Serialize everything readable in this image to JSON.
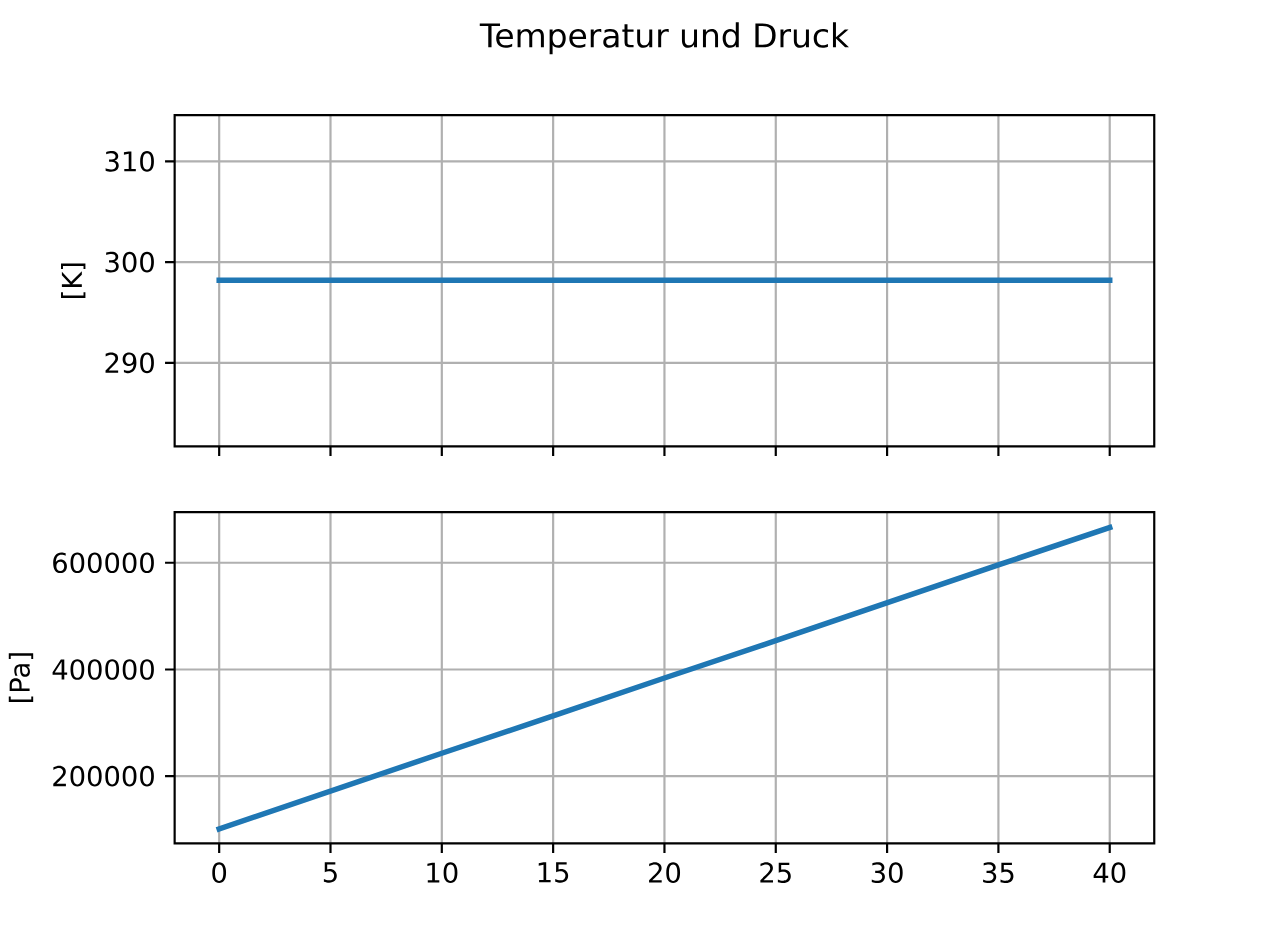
{
  "chart_data": [
    {
      "type": "line",
      "title": "Temperatur und Druck",
      "ylabel": "[K]",
      "x": [
        0,
        5,
        10,
        15,
        20,
        25,
        30,
        35,
        40
      ],
      "series": [
        {
          "color": "#1f77b4",
          "values": [
            298.2,
            298.2,
            298.2,
            298.2,
            298.2,
            298.2,
            298.2,
            298.2,
            298.2
          ]
        }
      ],
      "xlim": [
        -2,
        42
      ],
      "ylim": [
        281.7,
        314.6
      ],
      "xticks": [
        0,
        5,
        10,
        15,
        20,
        25,
        30,
        35,
        40
      ],
      "yticks": [
        290,
        300,
        310
      ],
      "grid": true,
      "tick_labels": "y"
    },
    {
      "type": "line",
      "ylabel": "[Pa]",
      "x": [
        0,
        5,
        10,
        15,
        20,
        25,
        30,
        35,
        40
      ],
      "series": [
        {
          "color": "#1f77b4",
          "values": [
            101000,
            172000,
            243000,
            313000,
            384000,
            454000,
            525000,
            596000,
            666000
          ]
        }
      ],
      "xlim": [
        -2,
        42
      ],
      "ylim": [
        74000,
        695000
      ],
      "xticks": [
        0,
        5,
        10,
        15,
        20,
        25,
        30,
        35,
        40
      ],
      "yticks": [
        200000,
        400000,
        600000
      ],
      "grid": true
    }
  ]
}
